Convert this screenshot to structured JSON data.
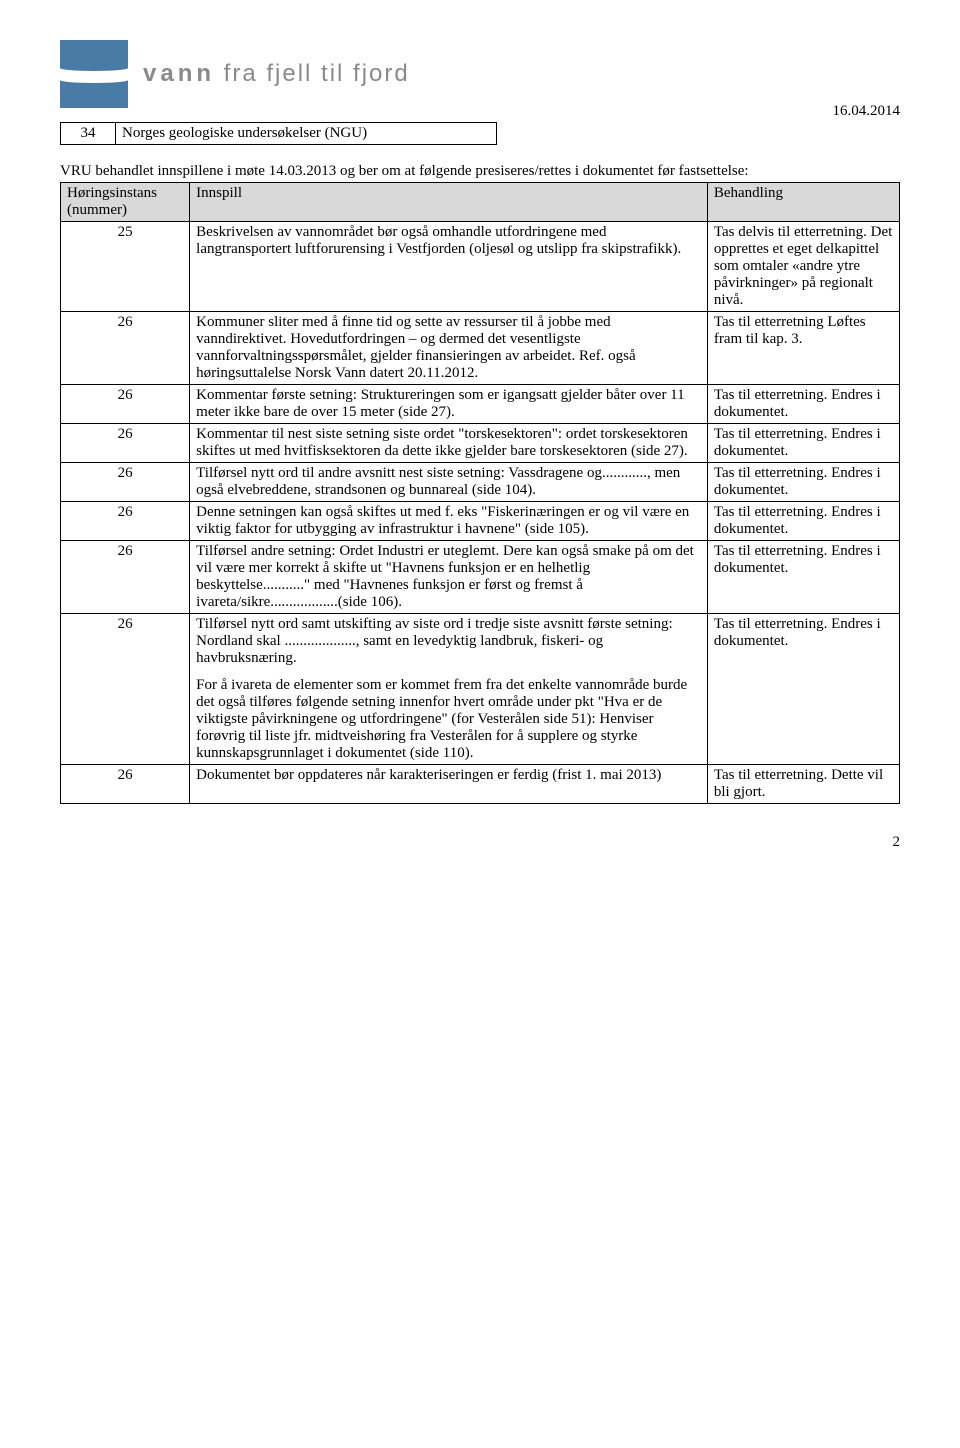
{
  "header": {
    "logo_text_bold": "vann",
    "logo_text_rest": " fra fjell til fjord",
    "date": "16.04.2014"
  },
  "top_table": {
    "row": {
      "num": "34",
      "text": "Norges geologiske undersøkelser (NGU)"
    }
  },
  "intro": {
    "line1": "VRU behandlet innspillene i møte 14.03.2013 og ber om at følgende presiseres/rettes i dokumentet før fastsettelse:"
  },
  "main_table": {
    "headers": {
      "col1a": "Høringsinstans",
      "col1b": "(nummer)",
      "col2": "Innspill",
      "col3": "Behandling"
    },
    "rows": [
      {
        "num": "25",
        "innspill": "Beskrivelsen av vannområdet bør også omhandle utfordringene med langtransportert luftforurensing i Vestfjorden (oljesøl og utslipp fra skipstrafikk).",
        "behandling": "Tas delvis til etterretning. Det opprettes et eget delkapittel som omtaler «andre ytre påvirkninger» på regionalt nivå."
      },
      {
        "num": "26",
        "innspill": "Kommuner sliter med å finne tid og sette av ressurser til å jobbe med vanndirektivet. Hovedutfordringen – og dermed det vesentligste vannforvaltningsspørsmålet, gjelder finansieringen av arbeidet. Ref. også høringsuttalelse Norsk Vann datert 20.11.2012.",
        "behandling": "Tas til etterretning Løftes fram til kap. 3."
      },
      {
        "num": "26",
        "innspill": "Kommentar første setning: Struktureringen som er igangsatt gjelder båter over 11 meter ikke bare de over 15 meter (side 27).",
        "behandling": "Tas til etterretning. Endres i dokumentet."
      },
      {
        "num": "26",
        "innspill": "Kommentar til nest siste setning siste ordet \"torskesektoren\": ordet torskesektoren skiftes ut med hvitfisksektoren da dette ikke gjelder bare torskesektoren (side 27).",
        "behandling": "Tas til etterretning. Endres i dokumentet."
      },
      {
        "num": "26",
        "innspill": "Tilførsel nytt ord til andre avsnitt nest siste setning: Vassdragene og............, men også elvebreddene, strandsonen og bunnareal (side 104).",
        "behandling": "Tas til etterretning. Endres i dokumentet."
      },
      {
        "num": "26",
        "innspill": "Denne setningen kan også skiftes ut med f. eks \"Fiskerinæringen er og vil være en viktig faktor for utbygging av infrastruktur i havnene\" (side 105).",
        "behandling": "Tas til etterretning. Endres i dokumentet."
      },
      {
        "num": "26",
        "innspill": "Tilførsel andre setning: Ordet Industri er uteglemt. Dere kan også smake på om det vil være mer korrekt å skifte ut \"Havnens funksjon er en helhetlig beskyttelse...........\" med \"Havnenes funksjon er først og fremst å ivareta/sikre..................(side 106).",
        "behandling": "Tas til etterretning. Endres i dokumentet."
      },
      {
        "num": "26",
        "innspill_p1": "Tilførsel nytt ord samt utskifting av siste ord i tredje siste avsnitt første setning: Nordland skal ..................., samt en levedyktig landbruk, fiskeri- og havbruksnæring.",
        "innspill_p2": "For å ivareta de elementer som er kommet frem fra det enkelte vannområde burde det også tilføres følgende setning innenfor hvert område under pkt \"Hva er de viktigste påvirkningene og utfordringene\" (for Vesterålen side 51): Henviser forøvrig til liste jfr. midtveishøring fra Vesterålen for å supplere og styrke kunnskapsgrunnlaget i dokumentet (side 110).",
        "behandling": "Tas til etterretning. Endres i dokumentet."
      },
      {
        "num": "26",
        "innspill": "Dokumentet bør oppdateres når karakteriseringen er ferdig (frist 1. mai 2013)",
        "behandling": "Tas til etterretning. Dette vil bli gjort."
      }
    ]
  },
  "page_number": "2",
  "colors": {
    "logo_bg": "#4a7ba6",
    "table_header_bg": "#d9d9d9",
    "text": "#000000",
    "logo_text": "#8a8a8a"
  }
}
